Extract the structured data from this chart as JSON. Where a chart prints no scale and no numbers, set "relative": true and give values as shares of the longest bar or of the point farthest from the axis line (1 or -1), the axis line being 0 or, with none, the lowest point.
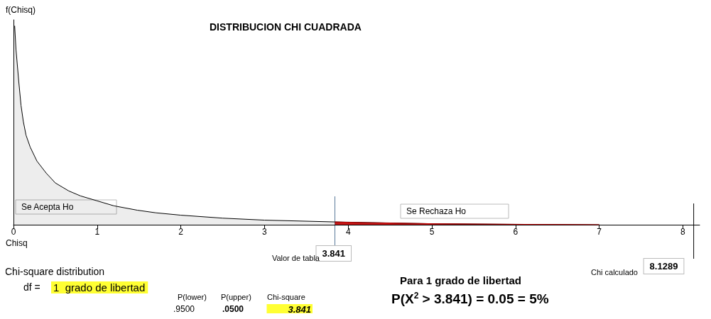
{
  "chart_data": {
    "type": "area",
    "title": "DISTRIBUCION CHI CUADRADA",
    "xlabel": "Chisq",
    "ylabel": "f(Chisq)",
    "relative": true,
    "marker": "none",
    "grid": false,
    "xlim": [
      0,
      8.2
    ],
    "xticks": [
      0,
      1,
      2,
      3,
      4,
      5,
      6,
      7,
      8
    ],
    "series": [
      {
        "color": "#000000",
        "x": [
          0.014,
          0.03,
          0.063,
          0.09,
          0.117,
          0.15,
          0.2,
          0.28,
          0.39,
          0.5,
          0.66,
          0.8,
          1,
          1.2,
          1.48,
          1.7,
          2,
          2.5,
          3,
          3.841,
          5,
          6,
          7
        ],
        "values": [
          1,
          0.88,
          0.72,
          0.6,
          0.52,
          0.45,
          0.39,
          0.32,
          0.26,
          0.21,
          0.17,
          0.145,
          0.12,
          0.095,
          0.073,
          0.06,
          0.048,
          0.033,
          0.023,
          0.014,
          0.005,
          0.002,
          0
        ]
      },
      {
        "color": "#c00000",
        "x": [
          3.841,
          4,
          5,
          6,
          7
        ],
        "values": [
          0.014,
          0.012,
          0.005,
          0.002,
          0
        ]
      }
    ],
    "ref_lines": [
      {
        "axis": "x",
        "value": 3.841,
        "label": "3.841",
        "color": "#5a7a9a"
      },
      {
        "axis": "x",
        "value": 8.1289,
        "label": "8.1289",
        "color": "#000000"
      }
    ],
    "annotations": [
      "Se Acepta Ho",
      "Se Rechaza Ho",
      "Valor de tabla",
      "Chi calculado",
      "Chi-square distribution",
      "df =",
      "1  grado de libertad",
      "P(lower)",
      ".9500",
      "P(upper)",
      ".0500",
      "Chi-square",
      "3.841",
      "Para 1 grado de libertad",
      "P(X$^{2}$ > 3.841) = 0.05 = 5%"
    ]
  }
}
